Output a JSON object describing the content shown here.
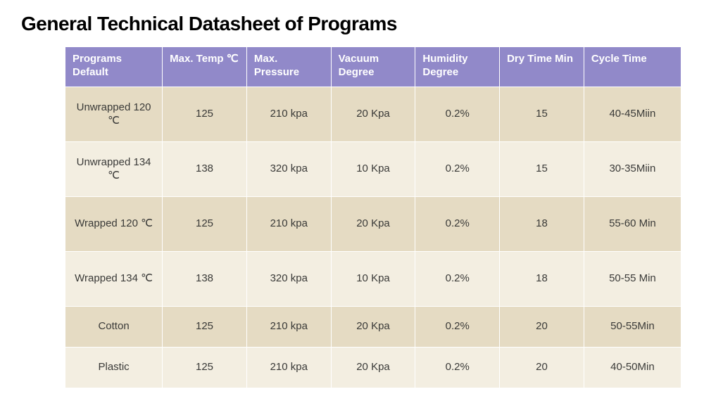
{
  "title": "General Technical Datasheet of Programs",
  "table": {
    "header_bg": "#9189c9",
    "header_fg": "#ffffff",
    "row_bg_odd": "#e5dbc3",
    "row_bg_even": "#f3eee1",
    "cell_fg": "#3a3a38",
    "columns": [
      "Programs Default",
      "Max. Temp ℃",
      "Max. Pressure",
      "Vacuum Degree",
      "Humidity Degree",
      "Dry Time   Min",
      "Cycle Time"
    ],
    "rows": [
      {
        "program": "Unwrapped 120 ℃",
        "max_temp": "125",
        "max_pressure": "210 kpa",
        "vacuum": "20  Kpa",
        "humidity": "0.2%",
        "dry_time": "15",
        "cycle_time": "40-45Miin"
      },
      {
        "program": "Unwrapped 134 ℃",
        "max_temp": "138",
        "max_pressure": "320 kpa",
        "vacuum": "10  Kpa",
        "humidity": "0.2%",
        "dry_time": "15",
        "cycle_time": "30-35Miin"
      },
      {
        "program": "Wrapped 120 ℃",
        "max_temp": "125",
        "max_pressure": "210 kpa",
        "vacuum": "20  Kpa",
        "humidity": "0.2%",
        "dry_time": "18",
        "cycle_time": "55-60 Min"
      },
      {
        "program": "Wrapped 134 ℃",
        "max_temp": "138",
        "max_pressure": "320 kpa",
        "vacuum": "10  Kpa",
        "humidity": "0.2%",
        "dry_time": "18",
        "cycle_time": "50-55 Min"
      },
      {
        "program": "Cotton",
        "max_temp": "125",
        "max_pressure": "210 kpa",
        "vacuum": "20  Kpa",
        "humidity": "0.2%",
        "dry_time": "20",
        "cycle_time": "50-55Min"
      },
      {
        "program": "Plastic",
        "max_temp": "125",
        "max_pressure": "210 kpa",
        "vacuum": "20  Kpa",
        "humidity": "0.2%",
        "dry_time": "20",
        "cycle_time": "40-50Min"
      }
    ]
  }
}
